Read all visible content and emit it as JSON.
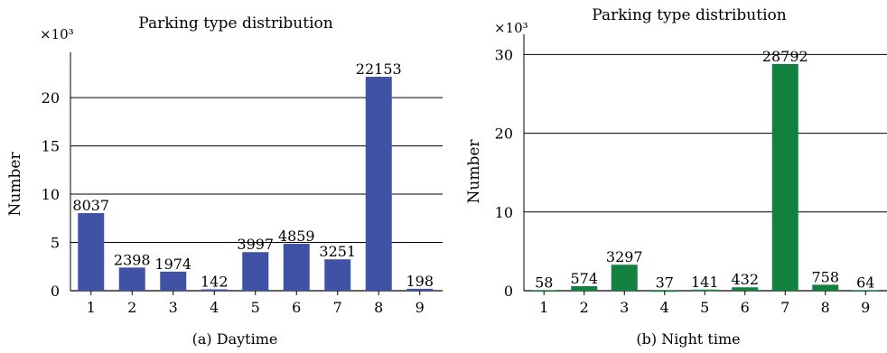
{
  "chart_data": [
    {
      "type": "bar",
      "title": "Parking type distribution",
      "ylabel": "Number",
      "xlabel": "",
      "y_multiplier": "×10³",
      "caption": "(a)  Daytime",
      "categories": [
        "1",
        "2",
        "3",
        "4",
        "5",
        "6",
        "7",
        "8",
        "9"
      ],
      "values": [
        8037,
        2398,
        1974,
        142,
        3997,
        4859,
        3251,
        22153,
        198
      ],
      "ylim": [
        0,
        23000
      ],
      "yticks": [
        0,
        5000,
        10000,
        15000,
        20000
      ],
      "ytick_labels": [
        "0",
        "5",
        "10",
        "15",
        "20"
      ],
      "grid": true,
      "color": "#4052a6"
    },
    {
      "type": "bar",
      "title": "Parking type distribution",
      "ylabel": "Number",
      "xlabel": "",
      "y_multiplier": "×10³",
      "caption": "(b)  Night time",
      "categories": [
        "1",
        "2",
        "3",
        "4",
        "5",
        "6",
        "7",
        "8",
        "9"
      ],
      "values": [
        58,
        574,
        3297,
        37,
        141,
        432,
        28792,
        758,
        64
      ],
      "ylim": [
        0,
        30500
      ],
      "yticks": [
        0,
        10000,
        20000,
        30000
      ],
      "ytick_labels": [
        "0",
        "10",
        "20",
        "30"
      ],
      "grid": true,
      "color": "#12803e"
    }
  ]
}
